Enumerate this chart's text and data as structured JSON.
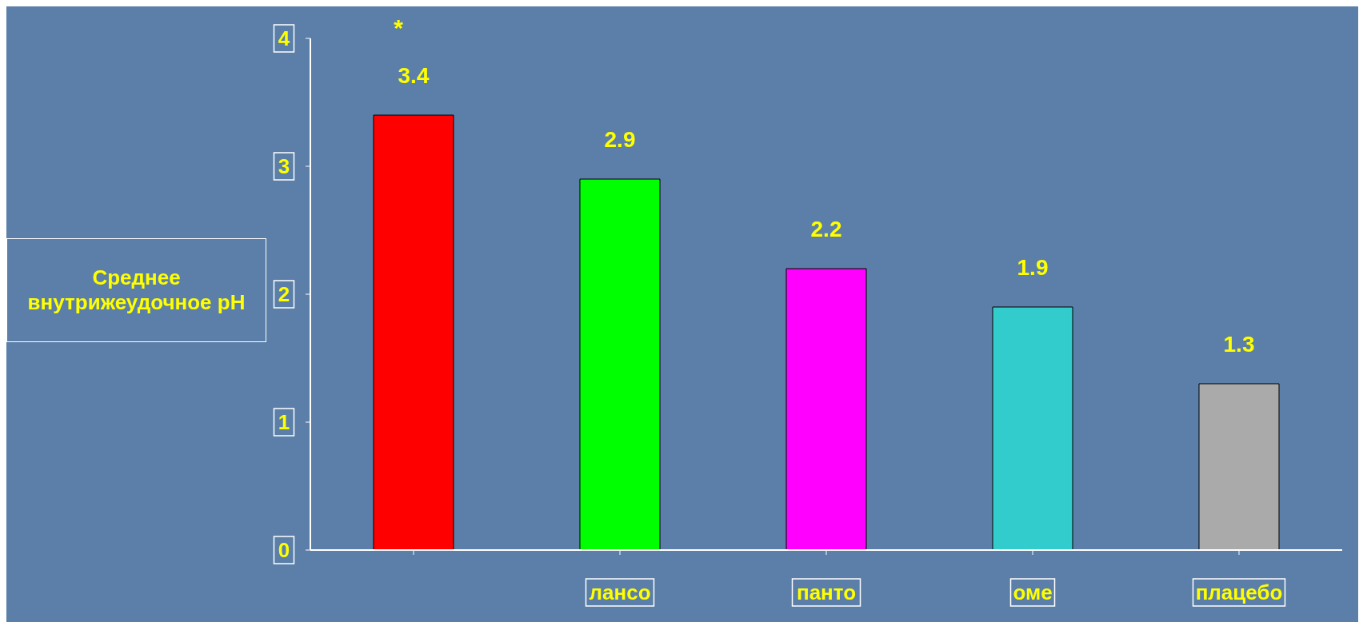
{
  "chart_data": {
    "type": "bar",
    "ylabel": "Среднее внутрижеудочное pH",
    "categories": [
      null,
      "лансо",
      "панто",
      "оме",
      "плацебо"
    ],
    "values": [
      3.4,
      2.9,
      2.2,
      1.9,
      1.3
    ],
    "colors": [
      "#ff0000",
      "#00ff00",
      "#ff00ff",
      "#33cccc",
      "#aaaaaa"
    ],
    "ylim": [
      0,
      4
    ],
    "yticks": [
      0,
      1,
      2,
      3,
      4
    ],
    "data_labels": true,
    "annotations": [
      "*"
    ]
  }
}
